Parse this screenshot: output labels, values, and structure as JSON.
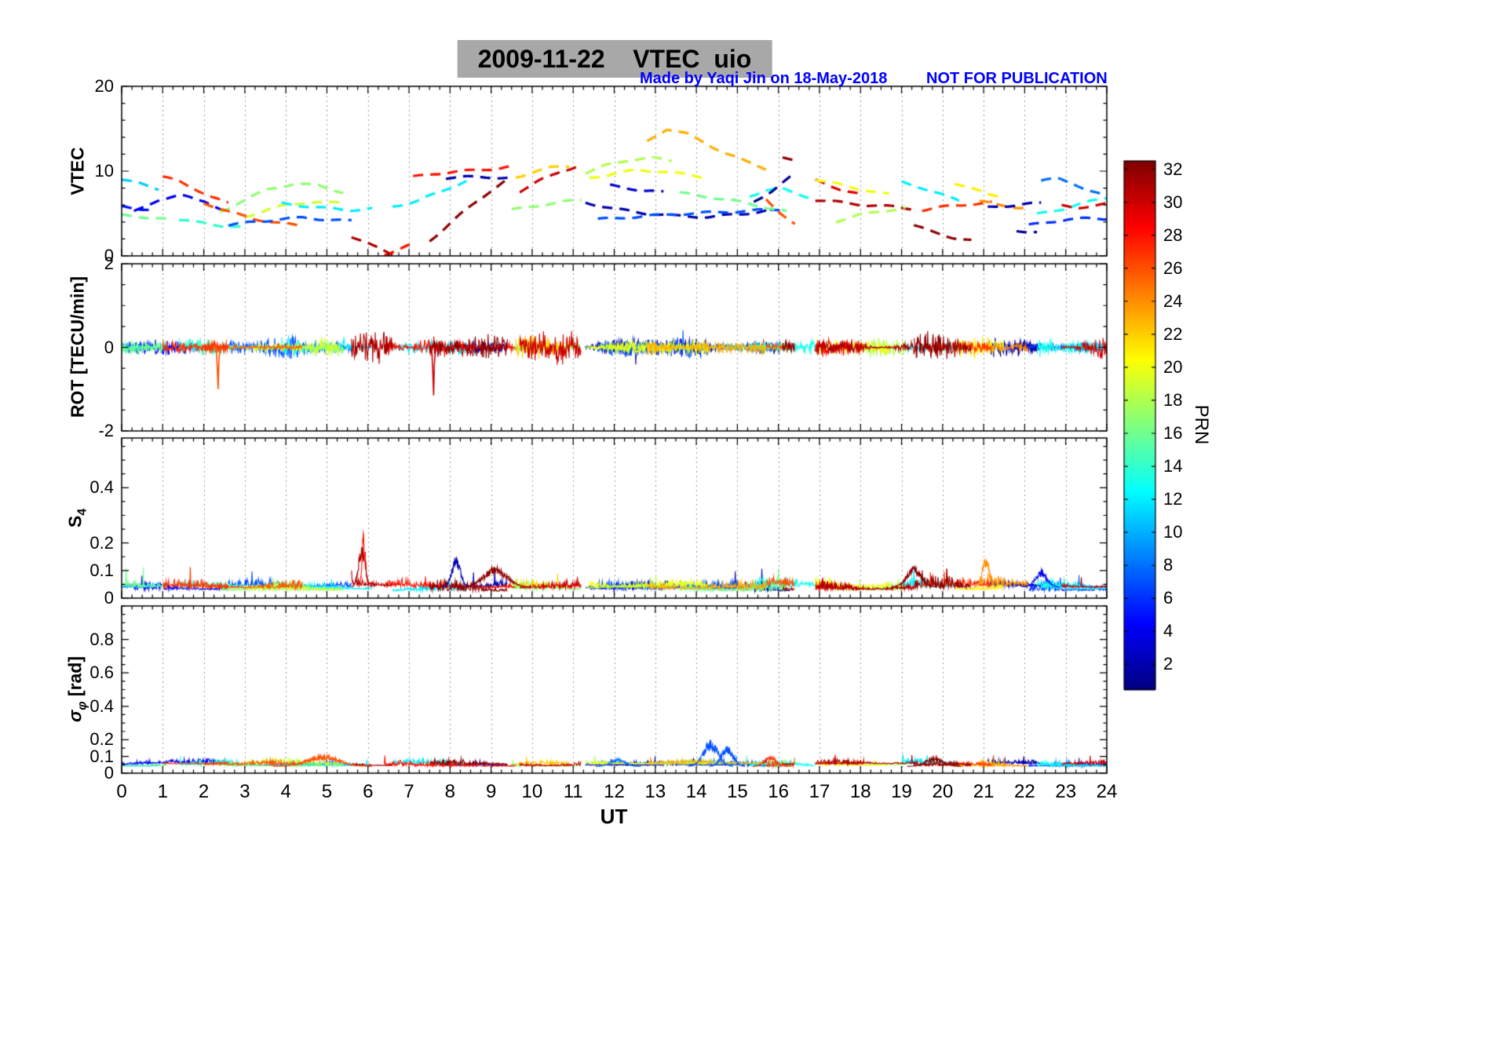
{
  "title": "2009-11-22    VTEC  uio",
  "annotation": {
    "credit": "Made by Yaqi Jin on 18-May-2018",
    "notice": "NOT FOR PUBLICATION",
    "color": "#0000ff"
  },
  "axes": {
    "xlabel": "UT",
    "xlim": [
      0,
      24
    ],
    "xtick_labels": [
      "0",
      "1",
      "2",
      "3",
      "4",
      "5",
      "6",
      "7",
      "8",
      "9",
      "10",
      "11",
      "12",
      "13",
      "14",
      "15",
      "16",
      "17",
      "18",
      "19",
      "20",
      "21",
      "22",
      "23",
      "24"
    ],
    "grid": "vertical-dotted"
  },
  "panels": [
    {
      "ylabel": "VTEC",
      "ylim": [
        0,
        20
      ],
      "yticks": [
        0,
        10,
        20
      ],
      "ytick_labels": [
        "0",
        "10",
        "20"
      ]
    },
    {
      "ylabel": "ROT [TECU/min]",
      "ylim": [
        -2,
        2
      ],
      "yticks": [
        -2,
        0,
        2
      ],
      "ytick_labels": [
        "-2",
        "0",
        "2"
      ]
    },
    {
      "ylabel_main": "S",
      "ylabel_sub": "4",
      "ylim": [
        0,
        0.58
      ],
      "yticks": [
        0,
        0.1,
        0.2,
        0.4
      ],
      "ytick_labels": [
        "0",
        "0.1",
        "0.2",
        "0.4"
      ]
    },
    {
      "ylabel_main": "σ",
      "ylabel_sub": "φ",
      "ylabel_post": " [rad]",
      "ylim": [
        0,
        1.0
      ],
      "yticks": [
        0,
        0.1,
        0.2,
        0.4,
        0.6,
        0.8
      ],
      "ytick_labels": [
        "0",
        "0.1",
        "0.2",
        "0.4",
        "0.6",
        "0.8"
      ]
    }
  ],
  "colorbar": {
    "label": "PRN",
    "colormap": "jet",
    "range": [
      0.5,
      32.5
    ],
    "ticks": [
      2,
      4,
      6,
      8,
      10,
      12,
      14,
      16,
      18,
      20,
      22,
      24,
      26,
      28,
      30,
      32
    ],
    "tick_labels": [
      "2",
      "4",
      "6",
      "8",
      "10",
      "12",
      "14",
      "16",
      "18",
      "20",
      "22",
      "24",
      "26",
      "28",
      "30",
      "32"
    ]
  },
  "chart_data": {
    "type": "line",
    "x_unit": "UT hours",
    "xlim": [
      0,
      24
    ],
    "panels_info": [
      {
        "id": "vtec",
        "ylabel": "VTEC",
        "ylim": [
          0,
          20
        ],
        "style": "dashed satellite arcs colored by PRN"
      },
      {
        "id": "rot",
        "ylabel": "ROT [TECU/min]",
        "ylim": [
          -2,
          2
        ],
        "style": "dense noise band around 0 colored by PRN"
      },
      {
        "id": "s4",
        "ylabel": "S4",
        "ylim": [
          0,
          0.58
        ],
        "style": "low scintillation traces near 0.05"
      },
      {
        "id": "sigma_phi",
        "ylabel": "sigma_phi [rad]",
        "ylim": [
          0,
          1.0
        ],
        "style": "low phase-scintillation traces near 0.06"
      }
    ],
    "vtec_arcs": [
      {
        "prn": 11,
        "t": [
          0,
          0.9
        ],
        "v": [
          9.0,
          8.5,
          7.9
        ]
      },
      {
        "prn": 5,
        "t": [
          0,
          0.7
        ],
        "v": [
          5.8,
          5.6,
          5.5
        ]
      },
      {
        "prn": 16,
        "t": [
          0,
          1.1
        ],
        "v": [
          4.8,
          4.6,
          4.3
        ]
      },
      {
        "prn": 4,
        "t": [
          0.3,
          2.6
        ],
        "v": [
          5.2,
          6.6,
          7.1,
          6.5,
          5.0
        ]
      },
      {
        "prn": 27,
        "t": [
          1.0,
          2.6
        ],
        "v": [
          9.3,
          8.8,
          7.9,
          6.9,
          6.2
        ]
      },
      {
        "prn": 14,
        "t": [
          1.4,
          2.9
        ],
        "v": [
          4.3,
          3.9,
          3.6,
          3.4
        ]
      },
      {
        "prn": 17,
        "t": [
          2.4,
          5.4
        ],
        "v": [
          5.2,
          6.6,
          7.9,
          8.5,
          8.3,
          7.5
        ]
      },
      {
        "prn": 19,
        "t": [
          3.0,
          5.3
        ],
        "v": [
          4.6,
          5.5,
          6.1,
          6.4,
          6.2
        ]
      },
      {
        "prn": 26,
        "t": [
          2.0,
          4.4
        ],
        "v": [
          6.3,
          5.2,
          4.4,
          3.9,
          3.5
        ]
      },
      {
        "prn": 7,
        "t": [
          2.6,
          5.6
        ],
        "v": [
          3.6,
          4.0,
          4.3,
          4.5,
          4.3,
          4.1
        ]
      },
      {
        "prn": 12,
        "t": [
          3.9,
          6.1
        ],
        "v": [
          6.2,
          5.9,
          5.6,
          5.4,
          5.6
        ]
      },
      {
        "prn": 31,
        "t": [
          5.6,
          6.6
        ],
        "v": [
          2.3,
          1.2,
          0.2
        ]
      },
      {
        "prn": 28,
        "t": [
          6.4,
          7.1
        ],
        "v": [
          0.2,
          0.8,
          1.4
        ]
      },
      {
        "prn": 12,
        "t": [
          6.6,
          8.4
        ],
        "v": [
          5.8,
          6.5,
          7.6,
          8.9
        ]
      },
      {
        "prn": 28,
        "t": [
          7.1,
          9.6
        ],
        "v": [
          9.3,
          9.7,
          9.9,
          10.1,
          10.3,
          10.6
        ]
      },
      {
        "prn": 32,
        "t": [
          7.5,
          9.4
        ],
        "v": [
          1.8,
          3.3,
          4.9,
          6.4,
          7.8,
          9.0
        ]
      },
      {
        "prn": 2,
        "t": [
          7.9,
          9.4
        ],
        "v": [
          9.2,
          9.3,
          9.3,
          9.2
        ]
      },
      {
        "prn": 30,
        "t": [
          9.7,
          11.2
        ],
        "v": [
          7.6,
          8.9,
          10.0,
          10.7
        ]
      },
      {
        "prn": 17,
        "t": [
          9.5,
          11.2
        ],
        "v": [
          5.4,
          5.9,
          6.3,
          6.6
        ]
      },
      {
        "prn": 22,
        "t": [
          9.6,
          10.9
        ],
        "v": [
          9.3,
          9.9,
          10.4,
          10.6
        ]
      },
      {
        "prn": 18,
        "t": [
          11.3,
          13.4
        ],
        "v": [
          9.8,
          10.7,
          11.3,
          11.6,
          11.2
        ]
      },
      {
        "prn": 20,
        "t": [
          11.4,
          14.3
        ],
        "v": [
          9.2,
          9.7,
          10.1,
          10.0,
          9.6,
          9.2
        ]
      },
      {
        "prn": 23,
        "t": [
          12.8,
          15.7
        ],
        "v": [
          13.5,
          15.0,
          14.4,
          13.2,
          12.1,
          11.1,
          10.3
        ]
      },
      {
        "prn": 2,
        "t": [
          11.3,
          15.8
        ],
        "v": [
          6.3,
          5.5,
          5.0,
          4.7,
          4.6,
          4.9,
          5.4
        ]
      },
      {
        "prn": 7,
        "t": [
          11.6,
          16.1
        ],
        "v": [
          4.3,
          4.6,
          4.9,
          5.1,
          5.3,
          5.5
        ]
      },
      {
        "prn": 16,
        "t": [
          13.6,
          16.2
        ],
        "v": [
          7.4,
          7.0,
          6.5,
          5.9,
          5.2
        ]
      },
      {
        "prn": 3,
        "t": [
          11.9,
          13.2
        ],
        "v": [
          8.3,
          8.0,
          7.7,
          7.5
        ]
      },
      {
        "prn": 26,
        "t": [
          15.7,
          16.4
        ],
        "v": [
          6.7,
          5.1,
          3.7
        ]
      },
      {
        "prn": 13,
        "t": [
          15.3,
          16.9
        ],
        "v": [
          7.1,
          7.7,
          7.9,
          7.3,
          6.7
        ]
      },
      {
        "prn": 1,
        "t": [
          15.4,
          16.3
        ],
        "v": [
          6.4,
          7.7,
          9.3
        ]
      },
      {
        "prn": 32,
        "t": [
          16.1,
          16.4
        ],
        "v": [
          11.6,
          11.4
        ]
      },
      {
        "prn": 31,
        "t": [
          16.9,
          19.4
        ],
        "v": [
          6.6,
          6.3,
          6.0,
          5.8,
          5.5
        ]
      },
      {
        "prn": 29,
        "t": [
          16.9,
          18.1
        ],
        "v": [
          8.9,
          7.9,
          7.1
        ]
      },
      {
        "prn": 20,
        "t": [
          16.9,
          18.7
        ],
        "v": [
          9.0,
          8.4,
          7.8,
          7.2
        ]
      },
      {
        "prn": 18,
        "t": [
          17.4,
          19.1
        ],
        "v": [
          4.1,
          4.8,
          5.3,
          5.7
        ]
      },
      {
        "prn": 12,
        "t": [
          19.0,
          20.4
        ],
        "v": [
          8.7,
          8.1,
          7.3,
          6.5
        ]
      },
      {
        "prn": 32,
        "t": [
          19.3,
          20.7
        ],
        "v": [
          3.6,
          2.8,
          2.2,
          1.8
        ]
      },
      {
        "prn": 27,
        "t": [
          19.5,
          21.2
        ],
        "v": [
          5.4,
          5.8,
          6.1,
          6.3
        ]
      },
      {
        "prn": 21,
        "t": [
          20.3,
          21.5
        ],
        "v": [
          8.6,
          7.9,
          7.3,
          7.0
        ]
      },
      {
        "prn": 24,
        "t": [
          20.9,
          22.1
        ],
        "v": [
          6.4,
          6.1,
          5.8,
          5.6
        ]
      },
      {
        "prn": 2,
        "t": [
          21.1,
          22.4
        ],
        "v": [
          5.7,
          5.9,
          6.1,
          6.2
        ]
      },
      {
        "prn": 1,
        "t": [
          21.8,
          22.3
        ],
        "v": [
          3.0,
          2.8
        ]
      },
      {
        "prn": 6,
        "t": [
          22.1,
          24.0
        ],
        "v": [
          3.6,
          4.0,
          4.3,
          4.4,
          4.4
        ]
      },
      {
        "prn": 13,
        "t": [
          22.3,
          24.0
        ],
        "v": [
          4.9,
          5.5,
          6.2,
          6.9
        ]
      },
      {
        "prn": 8,
        "t": [
          22.4,
          24.0
        ],
        "v": [
          8.9,
          9.1,
          8.5,
          7.7,
          7.0
        ]
      },
      {
        "prn": 30,
        "t": [
          22.9,
          24.0
        ],
        "v": [
          5.9,
          5.7,
          5.9,
          6.1
        ]
      }
    ],
    "rot": {
      "ylim": [
        -2,
        2
      ],
      "noise_band": 0.18,
      "spikes": [
        {
          "t": 2.35,
          "v": -1.0,
          "prn": 26
        },
        {
          "t": 7.6,
          "v": -1.15,
          "prn": 30
        }
      ]
    },
    "s4": {
      "ylim": [
        0,
        0.58
      ],
      "baseline": 0.05,
      "events": [
        {
          "prn": 28,
          "t": 5.9,
          "peak": 0.17,
          "w": 0.06
        },
        {
          "prn": 31,
          "t": 5.85,
          "peak": 0.12,
          "w": 0.12
        },
        {
          "prn": 2,
          "t": 8.15,
          "peak": 0.09,
          "w": 0.15
        },
        {
          "prn": 32,
          "t": 9.1,
          "peak": 0.06,
          "w": 0.4
        },
        {
          "prn": 32,
          "t": 19.3,
          "peak": 0.06,
          "w": 0.25
        },
        {
          "prn": 24,
          "t": 21.05,
          "peak": 0.09,
          "w": 0.12
        },
        {
          "prn": 4,
          "t": 22.4,
          "peak": 0.05,
          "w": 0.2
        }
      ]
    },
    "sigma_phi": {
      "ylim": [
        0,
        1.0
      ],
      "baseline": 0.06,
      "events": [
        {
          "prn": 7,
          "t": 14.35,
          "peak": 0.13,
          "w": 0.25
        },
        {
          "prn": 7,
          "t": 14.75,
          "peak": 0.1,
          "w": 0.2
        },
        {
          "prn": 26,
          "t": 4.9,
          "peak": 0.055,
          "w": 0.55
        },
        {
          "prn": 8,
          "t": 12.1,
          "peak": 0.04,
          "w": 0.25
        },
        {
          "prn": 27,
          "t": 15.8,
          "peak": 0.05,
          "w": 0.2
        },
        {
          "prn": 32,
          "t": 19.8,
          "peak": 0.045,
          "w": 0.3
        }
      ]
    }
  }
}
